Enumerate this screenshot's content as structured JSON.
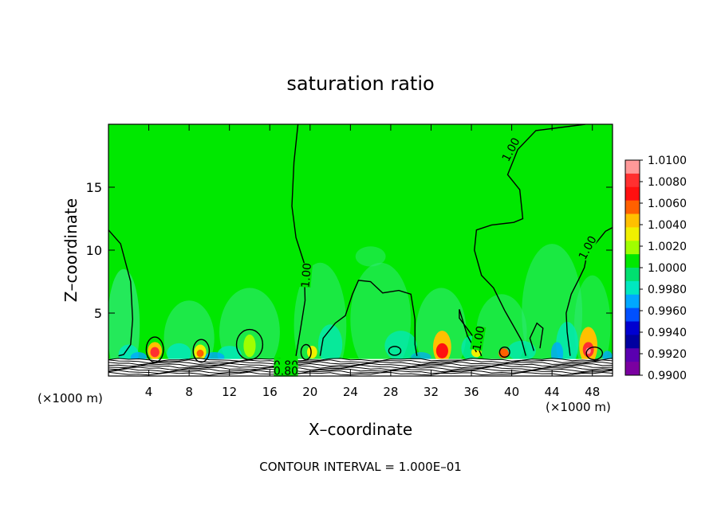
{
  "chart_data": {
    "type": "heatmap",
    "title": "saturation ratio",
    "xlabel": "X–coordinate",
    "ylabel": "Z–coordinate",
    "x_unit_left": "(×1000 m)",
    "x_unit_right": "(×1000 m)",
    "xlim": [
      0,
      50
    ],
    "ylim": [
      0,
      20
    ],
    "x_ticks": [
      4,
      8,
      12,
      16,
      20,
      24,
      28,
      32,
      36,
      40,
      44,
      48
    ],
    "y_ticks": [
      5,
      10,
      15
    ],
    "colorbar": {
      "levels": [
        "1.0100",
        "1.0080",
        "1.0060",
        "1.0040",
        "1.0020",
        "1.0000",
        "0.9980",
        "0.9960",
        "0.9940",
        "0.9920",
        "0.9900"
      ],
      "colors": [
        "#ff9999",
        "#ff3030",
        "#ff1010",
        "#ff6000",
        "#ffc000",
        "#f0f000",
        "#a0ff00",
        "#00e800",
        "#00e070",
        "#00e8c0",
        "#00a8ff",
        "#0050ff",
        "#0000d0",
        "#0000a0",
        "#5a00b0",
        "#7a00a0"
      ]
    },
    "contour_labels": [
      {
        "text": "1.00",
        "x": 39.9,
        "z": 18
      },
      {
        "text": "1.00",
        "x": 19.6,
        "z": 8
      },
      {
        "text": "1.00",
        "x": 36.7,
        "z": 3
      },
      {
        "text": "1.00",
        "x": 47.5,
        "z": 10.2
      },
      {
        "text": "0.80",
        "x": 17.6,
        "z": 0.9
      },
      {
        "text": "0.80",
        "x": 17.6,
        "z": 0.4
      }
    ],
    "footer": "CONTOUR INTERVAL = 1.000E–01",
    "grid": false
  }
}
